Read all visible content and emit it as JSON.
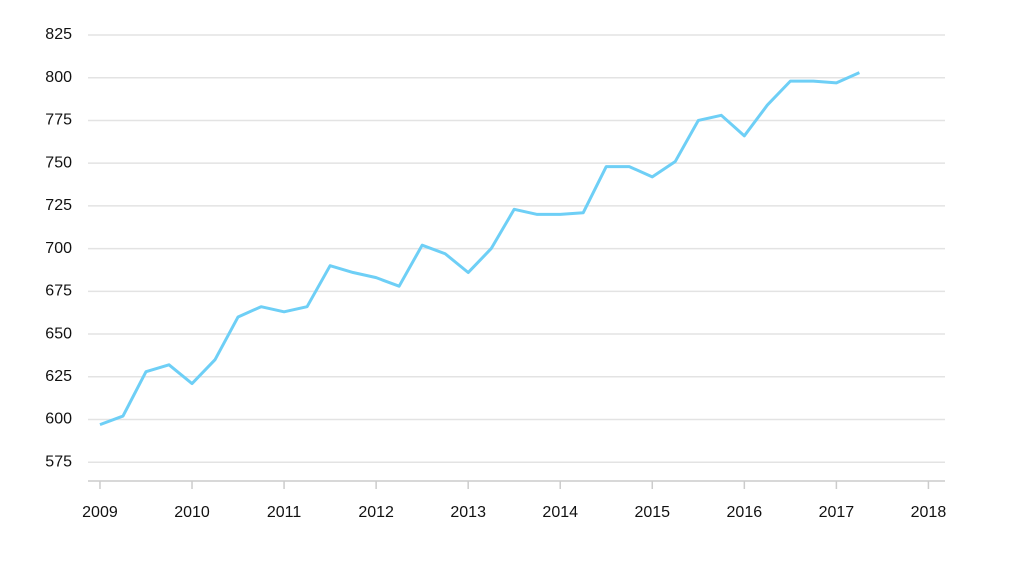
{
  "chart_data": {
    "type": "line",
    "x": [
      2009,
      2009.25,
      2009.5,
      2009.75,
      2010,
      2010.25,
      2010.5,
      2010.75,
      2011,
      2011.25,
      2011.5,
      2011.75,
      2012,
      2012.25,
      2012.5,
      2012.75,
      2013,
      2013.25,
      2013.5,
      2013.75,
      2014,
      2014.25,
      2014.5,
      2014.75,
      2015,
      2015.25,
      2015.5,
      2015.75,
      2016,
      2016.25,
      2016.5,
      2016.75,
      2017,
      2017.25
    ],
    "series": [
      {
        "color": "#6ecff6",
        "values": [
          597,
          602,
          628,
          632,
          621,
          635,
          660,
          666,
          663,
          666,
          690,
          686,
          683,
          678,
          702,
          697,
          686,
          700,
          723,
          720,
          720,
          721,
          748,
          748,
          742,
          751,
          775,
          778,
          766,
          784,
          798,
          798,
          797,
          803
        ]
      }
    ],
    "xlim": [
      2008.87,
      2018.18
    ],
    "xticks": [
      2009,
      2010,
      2011,
      2012,
      2013,
      2014,
      2015,
      2016,
      2017,
      2018
    ],
    "ylim": [
      564,
      825
    ],
    "yticks": [
      575,
      600,
      625,
      650,
      675,
      700,
      725,
      750,
      775,
      800,
      825
    ],
    "grid": true
  }
}
